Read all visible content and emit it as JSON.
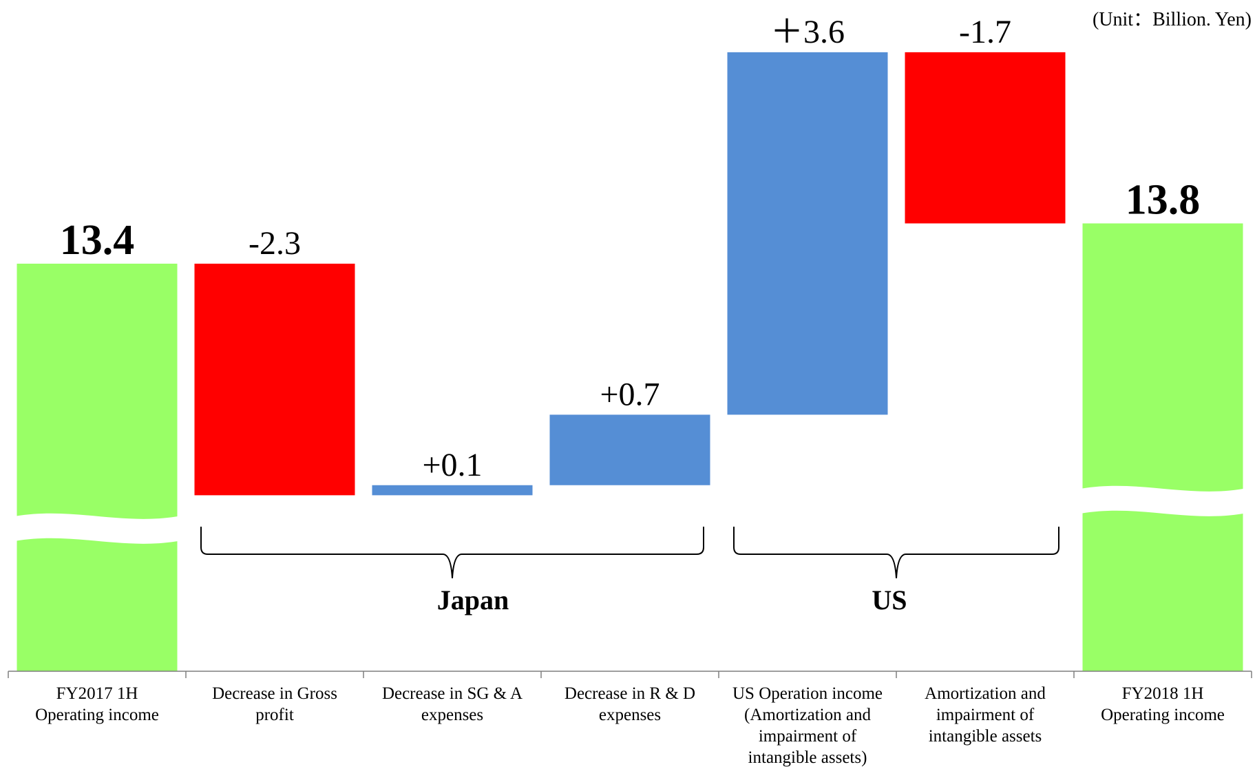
{
  "chart_data": {
    "type": "waterfall",
    "unit": "(Unit：Billion. Yen)",
    "categories": [
      [
        "FY2017 1H",
        "Operating income"
      ],
      [
        "Decrease in Gross",
        "profit"
      ],
      [
        "Decrease in SG & A",
        "expenses"
      ],
      [
        "Decrease in R & D",
        "expenses"
      ],
      [
        "US Operation income",
        "(Amortization and",
        "impairment of",
        "intangible assets)"
      ],
      [
        "Amortization and",
        "impairment of",
        "intangible assets"
      ],
      [
        "FY2018 1H",
        "Operating income"
      ]
    ],
    "steps": [
      {
        "kind": "total",
        "value": 13.4,
        "label": "13.4",
        "bold": true
      },
      {
        "kind": "delta",
        "value": -2.3,
        "label": "-2.3"
      },
      {
        "kind": "delta",
        "value": 0.1,
        "label": "+0.1"
      },
      {
        "kind": "delta",
        "value": 0.7,
        "label": "+0.7"
      },
      {
        "kind": "delta",
        "value": 3.6,
        "label": "＋3.6"
      },
      {
        "kind": "delta",
        "value": -1.7,
        "label": "-1.7"
      },
      {
        "kind": "total",
        "value": 13.8,
        "label": "13.8",
        "bold": true
      }
    ],
    "groups": [
      {
        "label": "Japan",
        "from": 1,
        "to": 3
      },
      {
        "label": "US",
        "from": 4,
        "to": 5
      }
    ],
    "axis_break": true,
    "colors": {
      "total": "#99ff66",
      "increase": "#558ed5",
      "decrease": "#ff0000"
    }
  }
}
